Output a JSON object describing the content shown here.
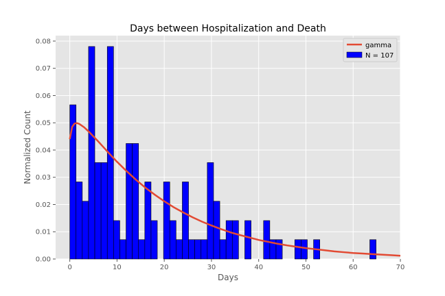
{
  "chart_data": {
    "type": "bar",
    "title": "Days between Hospitalization and Death",
    "xlabel": "Days",
    "ylabel": "Normalized Count",
    "xlim": [
      -3,
      70
    ],
    "ylim": [
      0,
      0.082
    ],
    "xticks": [
      "0",
      "10",
      "20",
      "30",
      "40",
      "50",
      "60",
      "70"
    ],
    "xtick_values": [
      0,
      10,
      20,
      30,
      40,
      50,
      60,
      70
    ],
    "yticks": [
      "0.00",
      "0.01",
      "0.02",
      "0.03",
      "0.04",
      "0.05",
      "0.06",
      "0.07",
      "0.08"
    ],
    "ytick_values": [
      0,
      0.01,
      0.02,
      0.03,
      0.04,
      0.05,
      0.06,
      0.07,
      0.08
    ],
    "grid": true,
    "legend_position": "top-right",
    "histogram": {
      "name": "N = 107",
      "color": "#0000ff",
      "edge_color": "#000000",
      "bin_start": 0,
      "bin_width": 1.3235,
      "values": [
        0.0566,
        0.0283,
        0.0212,
        0.078,
        0.0354,
        0.0354,
        0.078,
        0.0141,
        0.0071,
        0.0424,
        0.0424,
        0.0071,
        0.0283,
        0.0141,
        0,
        0.0283,
        0.0141,
        0.0071,
        0.0283,
        0.0071,
        0.0071,
        0.0071,
        0.0354,
        0.0212,
        0.0071,
        0.0141,
        0.0141,
        0,
        0.0141,
        0,
        0,
        0.0141,
        0.0071,
        0.0071,
        0,
        0,
        0.0071,
        0.0071,
        0,
        0.0071,
        0,
        0,
        0,
        0,
        0,
        0,
        0,
        0,
        0.0071
      ]
    },
    "fit_curve": {
      "name": "gamma",
      "color": "#e24a33",
      "x": [
        0,
        0.5,
        1,
        1.5,
        2,
        3,
        4,
        5,
        6,
        7,
        8,
        9,
        10,
        12,
        14,
        16,
        18,
        20,
        22,
        24,
        26,
        28,
        30,
        32,
        34,
        36,
        38,
        40,
        42,
        44,
        46,
        48,
        50,
        52,
        54,
        56,
        58,
        60,
        62,
        64,
        66,
        68,
        70
      ],
      "y": [
        0.044,
        0.0485,
        0.0497,
        0.0499,
        0.0496,
        0.0484,
        0.0468,
        0.045,
        0.0432,
        0.0413,
        0.0394,
        0.0375,
        0.0357,
        0.0323,
        0.0291,
        0.0262,
        0.0236,
        0.0212,
        0.019,
        0.0171,
        0.0153,
        0.0137,
        0.0123,
        0.011,
        0.0098,
        0.0088,
        0.0079,
        0.007,
        0.0063,
        0.0056,
        0.005,
        0.0045,
        0.004,
        0.0036,
        0.0032,
        0.0028,
        0.0025,
        0.0022,
        0.002,
        0.0018,
        0.0016,
        0.0014,
        0.0012
      ]
    },
    "legend": [
      {
        "label": "gamma",
        "kind": "line",
        "color": "#e24a33"
      },
      {
        "label": "N = 107",
        "kind": "patch",
        "color": "#0000ff"
      }
    ]
  }
}
